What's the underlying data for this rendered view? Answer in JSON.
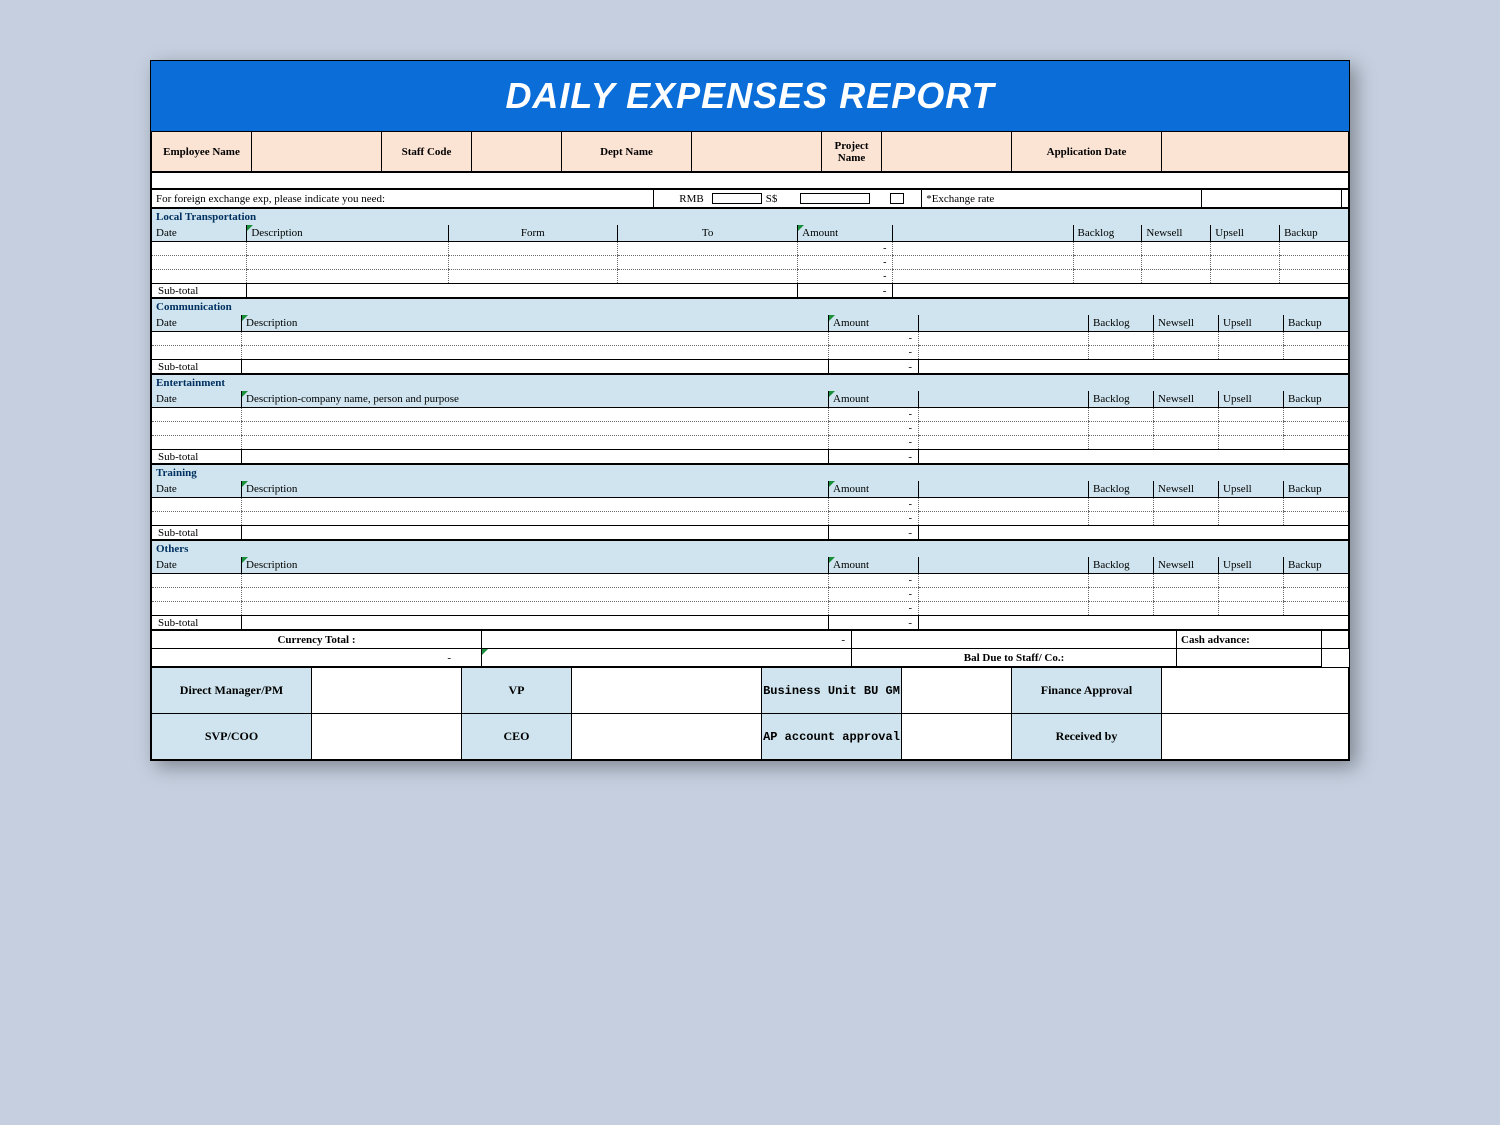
{
  "title": "DAILY EXPENSES REPORT",
  "colors": {
    "page_bg": "#c5cfdf",
    "title_bg": "#0a6dd8",
    "title_text": "#ffffff",
    "header_bg": "#fce4d4",
    "section_bg": "#cfe4ee",
    "section_title_text": "#003060",
    "border": "#000000",
    "dotted": "#6a6a6a",
    "triangle": "#1a8f3a"
  },
  "typography": {
    "title_fontsize_pt": 28,
    "title_family": "Arial",
    "body_family": "Times New Roman",
    "label_fontsize_pt": 9
  },
  "header": {
    "employee_name": "Employee Name",
    "staff_code": "Staff Code",
    "dept_name": "Dept Name",
    "project_name": "Project Name",
    "application_date": "Application Date"
  },
  "fx": {
    "text": "For foreign exchange exp, please indicate you need:",
    "rmb": "RMB",
    "ss": "S$",
    "rate": "*Exchange rate"
  },
  "sections": [
    {
      "name": "local_transportation",
      "title": "Local Transportation",
      "cols": [
        "Date",
        "Description",
        "Form",
        "To",
        "Amount",
        "Backlog",
        "Newsell",
        "Upsell",
        "Backup"
      ],
      "rows": 3,
      "subtotal": "Sub-total",
      "desc_variant": "standard_form_to"
    },
    {
      "name": "communication",
      "title": "Communication",
      "cols": [
        "Date",
        "Description",
        "Amount",
        "Backlog",
        "Newsell",
        "Upsell",
        "Backup"
      ],
      "rows": 2,
      "subtotal": "Sub-total",
      "desc_variant": "standard"
    },
    {
      "name": "entertainment",
      "title": "Entertainment",
      "cols": [
        "Date",
        "Description-company name, person and purpose",
        "Amount",
        "Backlog",
        "Newsell",
        "Upsell",
        "Backup"
      ],
      "rows": 3,
      "subtotal": "Sub-total",
      "desc_variant": "long_desc"
    },
    {
      "name": "training",
      "title": "Training",
      "cols": [
        "Date",
        "Description",
        "Amount",
        "Backlog",
        "Newsell",
        "Upsell",
        "Backup"
      ],
      "rows": 2,
      "subtotal": "Sub-total",
      "desc_variant": "standard"
    },
    {
      "name": "others",
      "title": "Others",
      "cols": [
        "Date",
        "Description",
        "Amount",
        "Backlog",
        "Newsell",
        "Upsell",
        "Backup"
      ],
      "rows": 3,
      "subtotal": "Sub-total",
      "desc_variant": "standard"
    }
  ],
  "totals": {
    "currency_total": "Currency Total :",
    "cash_advance": "Cash advance:",
    "bal_due": "Bal Due to Staff/ Co.:",
    "dash": "-"
  },
  "sign": {
    "row1": [
      "Direct Manager/PM",
      "VP",
      "Business Unit BU GM",
      "Finance Approval"
    ],
    "row2": [
      "SVP/COO",
      "CEO",
      "AP account approval",
      "Received by"
    ]
  },
  "dash": "-"
}
